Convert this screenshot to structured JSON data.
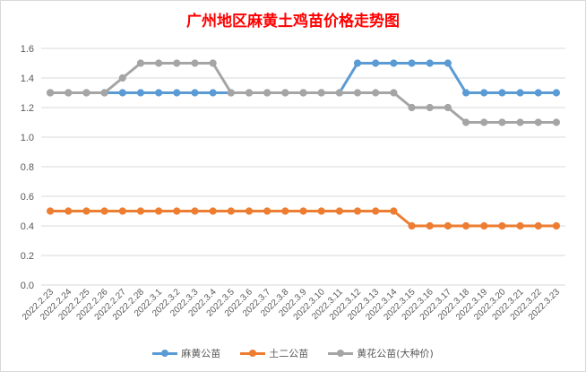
{
  "chart_data": {
    "type": "line",
    "title": "广州地区麻黄土鸡苗价格走势图",
    "ylim": [
      0,
      1.6
    ],
    "yticks": [
      "0.0",
      "0.2",
      "0.4",
      "0.6",
      "0.8",
      "1.0",
      "1.2",
      "1.4",
      "1.6"
    ],
    "grid": true,
    "legend_position": "bottom",
    "categories": [
      "2022.2.23",
      "2022.2.24",
      "2022.2.25",
      "2022.2.26",
      "2022.2.27",
      "2022.2.28",
      "2022.3.1",
      "2022.3.2",
      "2022.3.3",
      "2022.3.4",
      "2022.3.5",
      "2022.3.6",
      "2022.3.7",
      "2022.3.8",
      "2022.3.9",
      "2022.3.10",
      "2022.3.11",
      "2022.3.12",
      "2022.3.13",
      "2022.3.14",
      "2022.3.15",
      "2022.3.16",
      "2022.3.17",
      "2022.3.18",
      "2022.3.19",
      "2022.3.20",
      "2022.3.21",
      "2022.3.22",
      "2022.3.23"
    ],
    "series": [
      {
        "name": "麻黄公苗",
        "color": "#5b9bd5",
        "values": [
          1.3,
          1.3,
          1.3,
          1.3,
          1.3,
          1.3,
          1.3,
          1.3,
          1.3,
          1.3,
          1.3,
          1.3,
          1.3,
          1.3,
          1.3,
          1.3,
          1.3,
          1.5,
          1.5,
          1.5,
          1.5,
          1.5,
          1.5,
          1.3,
          1.3,
          1.3,
          1.3,
          1.3,
          1.3
        ]
      },
      {
        "name": "土二公苗",
        "color": "#ed7d31",
        "values": [
          0.5,
          0.5,
          0.5,
          0.5,
          0.5,
          0.5,
          0.5,
          0.5,
          0.5,
          0.5,
          0.5,
          0.5,
          0.5,
          0.5,
          0.5,
          0.5,
          0.5,
          0.5,
          0.5,
          0.5,
          0.4,
          0.4,
          0.4,
          0.4,
          0.4,
          0.4,
          0.4,
          0.4,
          0.4
        ]
      },
      {
        "name": "黄花公苗(大种价)",
        "color": "#a5a5a5",
        "values": [
          1.3,
          1.3,
          1.3,
          1.3,
          1.4,
          1.5,
          1.5,
          1.5,
          1.5,
          1.5,
          1.3,
          1.3,
          1.3,
          1.3,
          1.3,
          1.3,
          1.3,
          1.3,
          1.3,
          1.3,
          1.2,
          1.2,
          1.2,
          1.1,
          1.1,
          1.1,
          1.1,
          1.1,
          1.1
        ]
      }
    ]
  }
}
